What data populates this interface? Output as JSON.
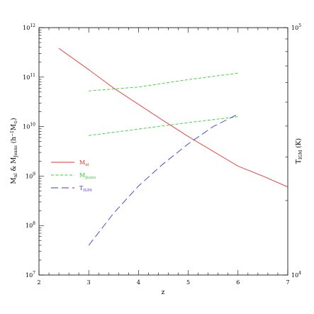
{
  "chart_data": {
    "type": "line",
    "title": "",
    "xlabel": "z",
    "ylabel": {
      "main": "M",
      "sub1": "nl",
      "mid": " & M",
      "sub2": "Jeans",
      "rest": " (h",
      "sup": "−1",
      "rest2": "M",
      "sub3": "⊙",
      "end": ")"
    },
    "y2label": {
      "main": "T",
      "sub": "IGM",
      "rest": " (K)"
    },
    "xlim": [
      2,
      7
    ],
    "ylim_log10": [
      7,
      12
    ],
    "y2lim_log10": [
      4,
      5
    ],
    "x_ticks": [
      "2",
      "3",
      "4",
      "5",
      "6",
      "7"
    ],
    "y_ticks": [
      {
        "base": "10",
        "exp": "7"
      },
      {
        "base": "10",
        "exp": "8"
      },
      {
        "base": "10",
        "exp": "9"
      },
      {
        "base": "10",
        "exp": "10"
      },
      {
        "base": "10",
        "exp": "11"
      },
      {
        "base": "10",
        "exp": "12"
      }
    ],
    "y2_ticks": [
      {
        "base": "10",
        "exp": "4"
      },
      {
        "base": "10",
        "exp": "5"
      }
    ],
    "series": [
      {
        "name": "M_nl",
        "color": "#e8322e",
        "dash": "solid",
        "axis": "left",
        "x": [
          2.4,
          3.0,
          3.5,
          4.0,
          4.5,
          5.0,
          5.5,
          6.0,
          6.5,
          7.0
        ],
        "y_log10": [
          11.58,
          11.15,
          10.78,
          10.45,
          10.12,
          9.8,
          9.5,
          9.2,
          9.0,
          8.78
        ]
      },
      {
        "name": "M_Jeans",
        "color": "#2fd12f",
        "dash": "short",
        "axis": "left",
        "x": [
          3.0,
          4.0,
          5.0,
          6.0
        ],
        "y_log10": [
          10.72,
          10.8,
          10.95,
          11.08
        ]
      },
      {
        "name": "M_Jeans",
        "color": "#2fd12f",
        "dash": "short",
        "axis": "left",
        "x": [
          3.0,
          4.0,
          5.0,
          6.0
        ],
        "y_log10": [
          9.82,
          9.95,
          10.08,
          10.2
        ]
      },
      {
        "name": "T_IGM",
        "color": "#3a3ad8",
        "dash": "long",
        "axis": "right",
        "x": [
          3.0,
          3.5,
          4.0,
          4.5,
          5.0,
          5.5,
          6.0
        ],
        "y_log10": [
          4.12,
          4.25,
          4.36,
          4.45,
          4.53,
          4.6,
          4.65
        ]
      }
    ],
    "legend": {
      "placement": "middle-left",
      "entries": [
        {
          "main": "M",
          "sub": "nl",
          "color": "#e8322e",
          "dash": "solid"
        },
        {
          "main": "M",
          "sub": "Jeans",
          "color": "#2fd12f",
          "dash": "short"
        },
        {
          "main": "T",
          "sub": "IGM",
          "color": "#3a3ad8",
          "dash": "long"
        }
      ]
    },
    "grid": false
  }
}
